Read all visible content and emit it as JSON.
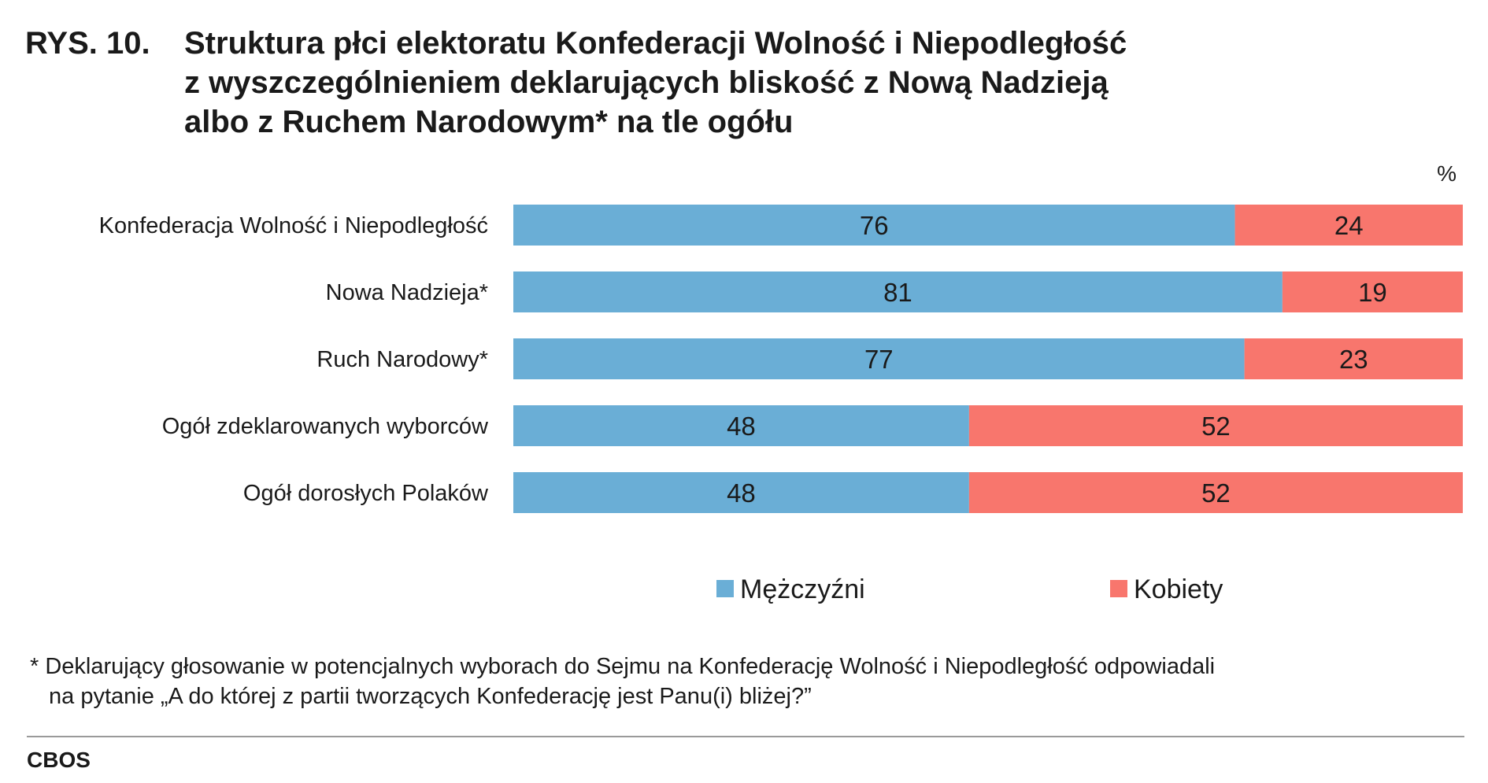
{
  "figure": {
    "number": "RYS. 10.",
    "title_lines": [
      "Struktura płci elektoratu Konfederacji Wolność i Niepodległość",
      "z wyszczególnieniem deklarujących bliskość z Nową Nadzieją",
      "albo z Ruchem Narodowym* na tle ogółu"
    ],
    "unit": "%"
  },
  "chart_data": {
    "type": "bar",
    "orientation": "horizontal",
    "stacked": true,
    "categories": [
      "Konfederacja Wolność i Niepodległość",
      "Nowa Nadzieja*",
      "Ruch Narodowy*",
      "Ogół zdeklarowanych wyborców",
      "Ogół dorosłych Polaków"
    ],
    "series": [
      {
        "name": "Mężczyźni",
        "color": "#6aaed6",
        "values": [
          76,
          81,
          77,
          48,
          48
        ]
      },
      {
        "name": "Kobiety",
        "color": "#f8766d",
        "values": [
          24,
          19,
          23,
          52,
          52
        ]
      }
    ],
    "xlim": [
      0,
      100
    ],
    "grid": false,
    "legend": "bottom-center"
  },
  "footnote_lines": [
    "* Deklarujący głosowanie w potencjalnych wyborach do Sejmu na Konfederację Wolność i Niepodległość odpowiadali",
    "na pytanie „A do której z partii tworzących Konfederację jest Panu(i) bliżej?”"
  ],
  "source": "CBOS"
}
